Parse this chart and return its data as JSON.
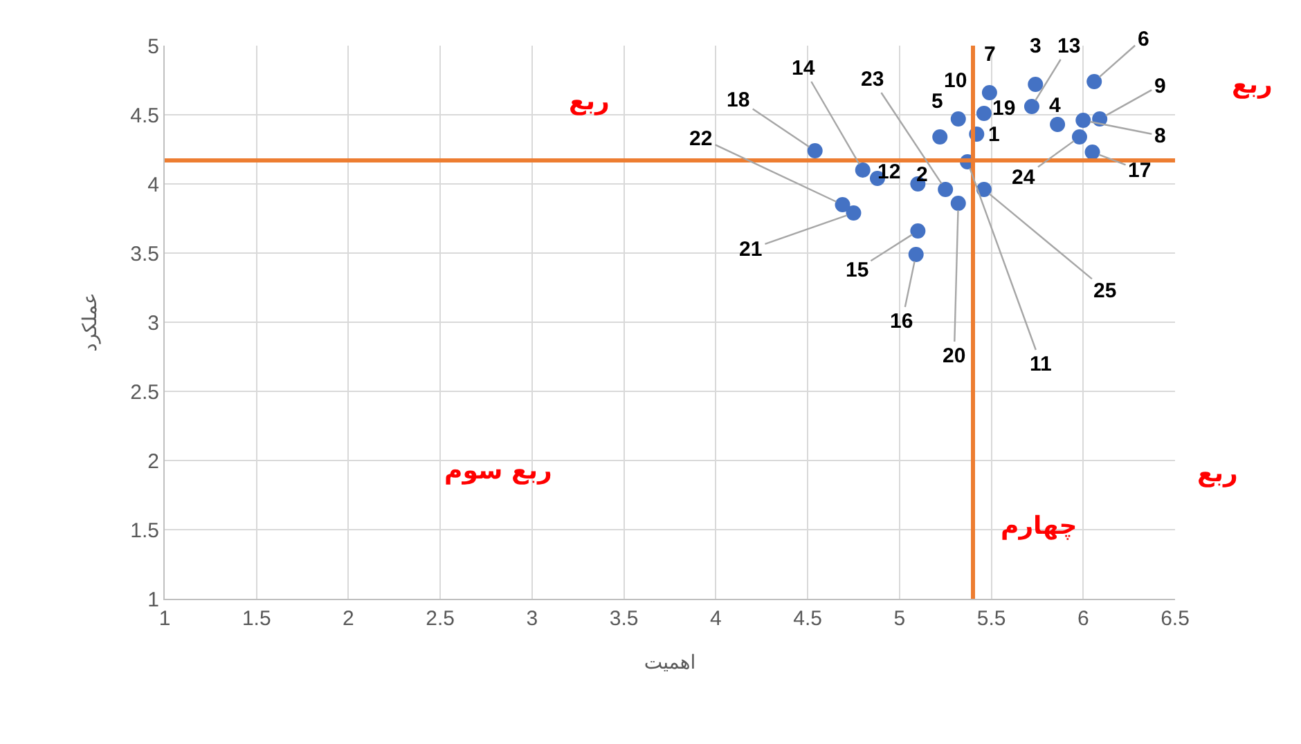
{
  "chart_data": {
    "type": "scatter",
    "xlabel": "اهمیت",
    "ylabel": "عملکرد",
    "x": [
      5.42,
      5.1,
      5.74,
      5.86,
      5.22,
      6.06,
      5.49,
      6.0,
      6.09,
      5.32,
      5.37,
      4.88,
      5.72,
      4.8,
      5.1,
      5.09,
      6.05,
      4.54,
      5.46,
      5.32,
      4.75,
      4.69,
      5.25,
      5.98,
      5.46
    ],
    "series": [
      {
        "color": "#4472c4",
        "values": [
          4.36,
          4.0,
          4.72,
          4.43,
          4.34,
          4.74,
          4.66,
          4.46,
          4.47,
          4.47,
          4.16,
          4.04,
          4.56,
          4.1,
          3.66,
          3.49,
          4.23,
          4.24,
          4.51,
          3.86,
          3.79,
          3.85,
          3.96,
          4.34,
          3.96
        ]
      }
    ],
    "marker": "circle",
    "grid": true,
    "xlim": [
      1,
      6.5
    ],
    "xticks": [
      1,
      1.5,
      2,
      2.5,
      3,
      3.5,
      4,
      4.5,
      5,
      5.5,
      6,
      6.5
    ],
    "ylim": [
      1,
      5
    ],
    "yticks": [
      1,
      1.5,
      2,
      2.5,
      3,
      3.5,
      4,
      4.5,
      5
    ],
    "ref_lines": [
      {
        "axis": "y",
        "value": 4.17,
        "color": "#ed7d31"
      },
      {
        "axis": "x",
        "value": 5.4,
        "color": "#ed7d31"
      }
    ],
    "annotations": [
      {
        "text": "1",
        "x": 5.42,
        "y": 4.36
      },
      {
        "text": "2",
        "x": 5.1,
        "y": 4.0
      },
      {
        "text": "3",
        "x": 5.74,
        "y": 4.72
      },
      {
        "text": "4",
        "x": 5.86,
        "y": 4.43
      },
      {
        "text": "5",
        "x": 5.22,
        "y": 4.34
      },
      {
        "text": "6",
        "x": 6.06,
        "y": 4.74
      },
      {
        "text": "7",
        "x": 5.49,
        "y": 4.66
      },
      {
        "text": "8",
        "x": 6.0,
        "y": 4.46
      },
      {
        "text": "9",
        "x": 6.09,
        "y": 4.47
      },
      {
        "text": "10",
        "x": 5.32,
        "y": 4.47
      },
      {
        "text": "11",
        "x": 5.37,
        "y": 4.16
      },
      {
        "text": "12",
        "x": 4.88,
        "y": 4.04
      },
      {
        "text": "13",
        "x": 5.72,
        "y": 4.56
      },
      {
        "text": "14",
        "x": 4.8,
        "y": 4.1
      },
      {
        "text": "15",
        "x": 5.1,
        "y": 3.66
      },
      {
        "text": "16",
        "x": 5.09,
        "y": 3.49
      },
      {
        "text": "17",
        "x": 6.05,
        "y": 4.23
      },
      {
        "text": "18",
        "x": 4.54,
        "y": 4.24
      },
      {
        "text": "19",
        "x": 5.46,
        "y": 4.51
      },
      {
        "text": "20",
        "x": 5.32,
        "y": 3.86
      },
      {
        "text": "21",
        "x": 4.75,
        "y": 3.79
      },
      {
        "text": "22",
        "x": 4.69,
        "y": 3.85
      },
      {
        "text": "23",
        "x": 5.25,
        "y": 3.96
      },
      {
        "text": "24",
        "x": 5.98,
        "y": 4.34
      },
      {
        "text": "25",
        "x": 5.46,
        "y": 3.96
      },
      "ربع",
      "ربع",
      "ربع سوم",
      "ربع",
      "چهارم"
    ]
  }
}
